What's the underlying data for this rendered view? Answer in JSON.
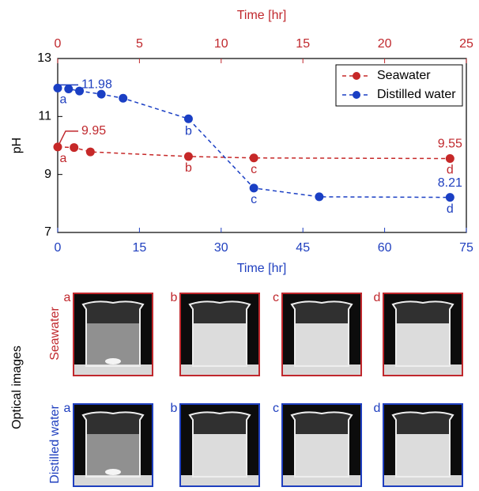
{
  "chart_data": {
    "type": "line",
    "ylabel": "pH",
    "xlabel": "Time [hr]",
    "x2label": "Time [hr]",
    "xlim": [
      0,
      75
    ],
    "xticks": [
      0,
      15,
      30,
      45,
      60,
      75
    ],
    "x2lim": [
      0,
      25
    ],
    "x2ticks": [
      0,
      5,
      10,
      15,
      20,
      25
    ],
    "ylim": [
      7,
      13
    ],
    "yticks": [
      7,
      9,
      11,
      13
    ],
    "legend": "upper right",
    "series": [
      {
        "name": "Seawater",
        "color": "#c62828",
        "axis": "x2",
        "x": [
          0,
          1,
          2,
          8,
          12,
          24
        ],
        "values": [
          9.95,
          9.93,
          9.78,
          9.62,
          9.57,
          9.55
        ],
        "value_labels": [
          "9.95",
          null,
          null,
          null,
          null,
          "9.55"
        ],
        "point_labels": [
          "a",
          null,
          null,
          "b",
          "c",
          "d"
        ]
      },
      {
        "name": "Distilled water",
        "color": "#1a3fc4",
        "x": [
          0,
          2,
          4,
          8,
          12,
          24,
          36,
          48,
          72
        ],
        "values": [
          11.98,
          11.95,
          11.88,
          11.77,
          11.63,
          10.92,
          8.53,
          8.23,
          8.21
        ],
        "value_labels": [
          "11.98",
          null,
          null,
          null,
          null,
          null,
          null,
          null,
          "8.21"
        ],
        "point_labels": [
          "a",
          null,
          null,
          null,
          null,
          "b",
          "c",
          null,
          "d"
        ]
      }
    ]
  },
  "images": {
    "title": "Optical images",
    "rows": [
      {
        "label": "Seawater",
        "panels": [
          "a",
          "b",
          "c",
          "d"
        ]
      },
      {
        "label": "Distilled water",
        "panels": [
          "a",
          "b",
          "c",
          "d"
        ]
      }
    ]
  }
}
